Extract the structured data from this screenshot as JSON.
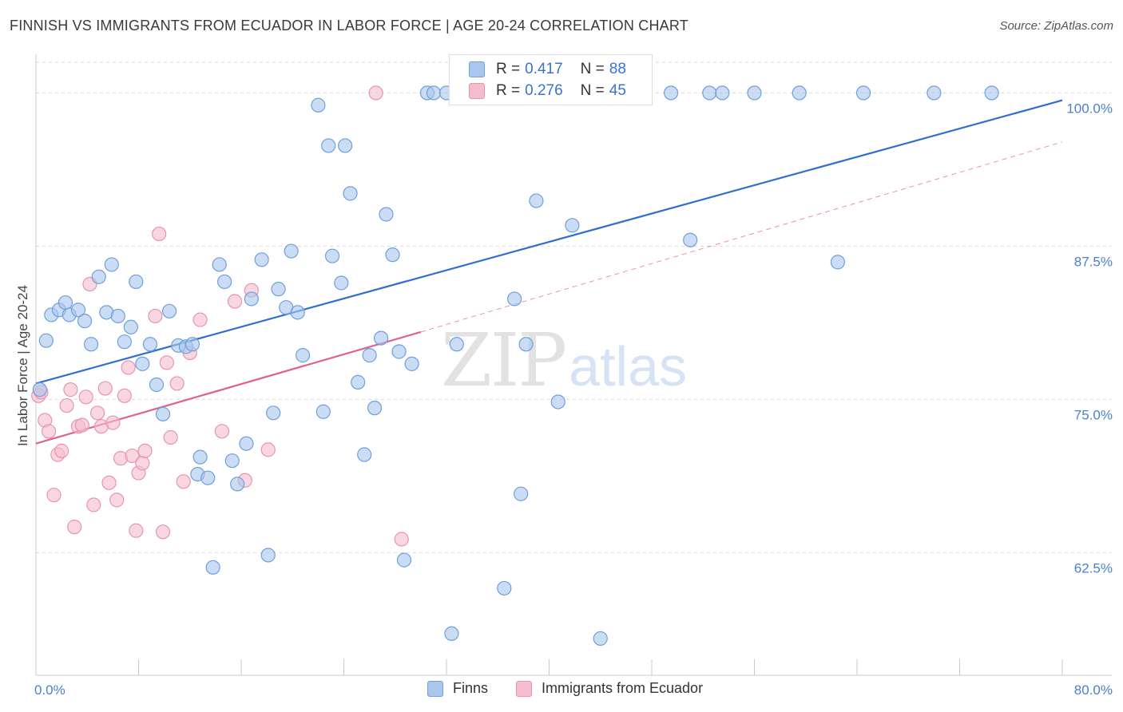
{
  "title": "FINNISH VS IMMIGRANTS FROM ECUADOR IN LABOR FORCE | AGE 20-24 CORRELATION CHART",
  "source": "Source: ZipAtlas.com",
  "watermark": {
    "zip": "ZIP",
    "atlas": "atlas"
  },
  "legend": {
    "finns": {
      "r_label": "R =",
      "r_value": "0.417",
      "n_label": "N =",
      "n_value": "88"
    },
    "ecuador": {
      "r_label": "R =",
      "r_value": "0.276",
      "n_label": "N =",
      "n_value": "45"
    }
  },
  "bottom_legend": {
    "finns": "Finns",
    "ecuador": "Immigrants from Ecuador"
  },
  "colors": {
    "finns_fill": "#a9c6ee",
    "finns_stroke": "#6f9fdc",
    "finns_line": "#2f6fcf",
    "ecuador_fill": "#f5bccd",
    "ecuador_stroke": "#e994ae",
    "ecuador_line": "#e0628a",
    "grid": "#d8d8d8",
    "tick_text": "#4a7fd0"
  },
  "chart_data": {
    "type": "scatter",
    "title": "FINNISH VS IMMIGRANTS FROM ECUADOR IN LABOR FORCE | AGE 20-24 CORRELATION CHART",
    "xlabel": "",
    "ylabel": "In Labor Force | Age 20-24",
    "xlim": [
      0,
      80
    ],
    "ylim": [
      52.5,
      102.5
    ],
    "x_tick_labels": [
      {
        "value": 0,
        "label": "0.0%"
      },
      {
        "value": 80,
        "label": "80.0%"
      }
    ],
    "y_ticks": [
      {
        "value": 62.5,
        "label": "62.5%"
      },
      {
        "value": 75,
        "label": "75.0%"
      },
      {
        "value": 87.5,
        "label": "87.5%"
      },
      {
        "value": 100,
        "label": "100.0%"
      }
    ],
    "grid": true,
    "series": [
      {
        "name": "Finns",
        "trend": {
          "x": [
            0,
            80
          ],
          "y": [
            76.3,
            99.4
          ],
          "dashed_extension": false
        },
        "points": [
          [
            0.3,
            75.8
          ],
          [
            0.8,
            79.8
          ],
          [
            1.2,
            81.9
          ],
          [
            1.8,
            82.3
          ],
          [
            2.3,
            82.9
          ],
          [
            2.6,
            81.9
          ],
          [
            3.3,
            82.3
          ],
          [
            3.8,
            81.4
          ],
          [
            4.3,
            79.5
          ],
          [
            4.9,
            85.0
          ],
          [
            5.5,
            82.1
          ],
          [
            5.9,
            86.0
          ],
          [
            6.4,
            81.8
          ],
          [
            6.9,
            79.7
          ],
          [
            7.4,
            80.9
          ],
          [
            7.8,
            84.6
          ],
          [
            8.3,
            77.9
          ],
          [
            8.9,
            79.5
          ],
          [
            9.4,
            76.2
          ],
          [
            9.9,
            73.8
          ],
          [
            10.4,
            82.2
          ],
          [
            11.1,
            79.4
          ],
          [
            11.7,
            79.3
          ],
          [
            12.2,
            79.5
          ],
          [
            12.6,
            68.9
          ],
          [
            12.8,
            70.3
          ],
          [
            13.4,
            68.6
          ],
          [
            13.8,
            61.3
          ],
          [
            14.3,
            86.0
          ],
          [
            14.7,
            84.6
          ],
          [
            15.3,
            70.0
          ],
          [
            15.7,
            68.1
          ],
          [
            16.4,
            71.4
          ],
          [
            16.8,
            83.2
          ],
          [
            17.6,
            86.4
          ],
          [
            18.1,
            62.3
          ],
          [
            18.5,
            73.9
          ],
          [
            18.9,
            84.0
          ],
          [
            19.5,
            82.5
          ],
          [
            19.9,
            87.1
          ],
          [
            20.4,
            82.1
          ],
          [
            20.8,
            78.6
          ],
          [
            22.0,
            99.0
          ],
          [
            22.4,
            74.0
          ],
          [
            22.8,
            95.7
          ],
          [
            23.1,
            86.7
          ],
          [
            23.8,
            84.5
          ],
          [
            24.1,
            95.7
          ],
          [
            24.5,
            91.8
          ],
          [
            25.1,
            76.4
          ],
          [
            25.6,
            70.5
          ],
          [
            26.0,
            78.6
          ],
          [
            26.4,
            74.3
          ],
          [
            26.9,
            80.0
          ],
          [
            27.3,
            90.1
          ],
          [
            27.8,
            86.8
          ],
          [
            28.3,
            78.9
          ],
          [
            28.7,
            61.9
          ],
          [
            29.3,
            77.9
          ],
          [
            30.5,
            100.0
          ],
          [
            31.0,
            100.0
          ],
          [
            32.0,
            100.0
          ],
          [
            32.4,
            55.9
          ],
          [
            32.8,
            79.5
          ],
          [
            34.0,
            100.0
          ],
          [
            34.5,
            100.0
          ],
          [
            35.5,
            100.0
          ],
          [
            36.5,
            59.6
          ],
          [
            37.3,
            83.2
          ],
          [
            37.8,
            67.3
          ],
          [
            38.2,
            79.5
          ],
          [
            39.0,
            91.2
          ],
          [
            40.0,
            100.0
          ],
          [
            40.7,
            74.8
          ],
          [
            41.8,
            89.2
          ],
          [
            43.0,
            100.0
          ],
          [
            44.0,
            55.5
          ],
          [
            47.5,
            100.0
          ],
          [
            49.5,
            100.0
          ],
          [
            51.0,
            88.0
          ],
          [
            52.5,
            100.0
          ],
          [
            53.5,
            100.0
          ],
          [
            56.0,
            100.0
          ],
          [
            59.5,
            100.0
          ],
          [
            62.5,
            86.2
          ],
          [
            64.5,
            100.0
          ],
          [
            70.0,
            100.0
          ],
          [
            74.5,
            100.0
          ]
        ]
      },
      {
        "name": "Immigrants from Ecuador",
        "trend": {
          "x": [
            0,
            30
          ],
          "y": [
            71.4,
            80.5
          ],
          "dashed_extension": true,
          "extension_to": [
            80,
            96.0
          ]
        },
        "points": [
          [
            0.2,
            75.3
          ],
          [
            0.4,
            75.6
          ],
          [
            0.7,
            73.3
          ],
          [
            1.0,
            72.4
          ],
          [
            1.4,
            67.2
          ],
          [
            1.7,
            70.5
          ],
          [
            2.0,
            70.8
          ],
          [
            2.4,
            74.5
          ],
          [
            2.7,
            75.8
          ],
          [
            3.0,
            64.6
          ],
          [
            3.3,
            72.8
          ],
          [
            3.6,
            72.9
          ],
          [
            3.9,
            75.2
          ],
          [
            4.2,
            84.4
          ],
          [
            4.5,
            66.4
          ],
          [
            4.8,
            73.9
          ],
          [
            5.1,
            72.8
          ],
          [
            5.4,
            75.9
          ],
          [
            5.7,
            68.2
          ],
          [
            6.0,
            73.1
          ],
          [
            6.3,
            66.8
          ],
          [
            6.6,
            70.2
          ],
          [
            6.9,
            75.3
          ],
          [
            7.2,
            77.6
          ],
          [
            7.5,
            70.4
          ],
          [
            7.8,
            64.3
          ],
          [
            8.0,
            69.0
          ],
          [
            8.3,
            69.8
          ],
          [
            8.5,
            70.8
          ],
          [
            9.3,
            81.8
          ],
          [
            9.6,
            88.5
          ],
          [
            9.9,
            64.2
          ],
          [
            10.2,
            78.0
          ],
          [
            10.5,
            71.9
          ],
          [
            11.0,
            76.3
          ],
          [
            11.5,
            68.3
          ],
          [
            12.0,
            78.8
          ],
          [
            12.8,
            81.5
          ],
          [
            14.5,
            72.4
          ],
          [
            15.5,
            83.0
          ],
          [
            16.3,
            68.4
          ],
          [
            16.8,
            83.9
          ],
          [
            18.1,
            70.9
          ],
          [
            26.5,
            100.0
          ],
          [
            28.5,
            63.6
          ]
        ]
      }
    ]
  }
}
